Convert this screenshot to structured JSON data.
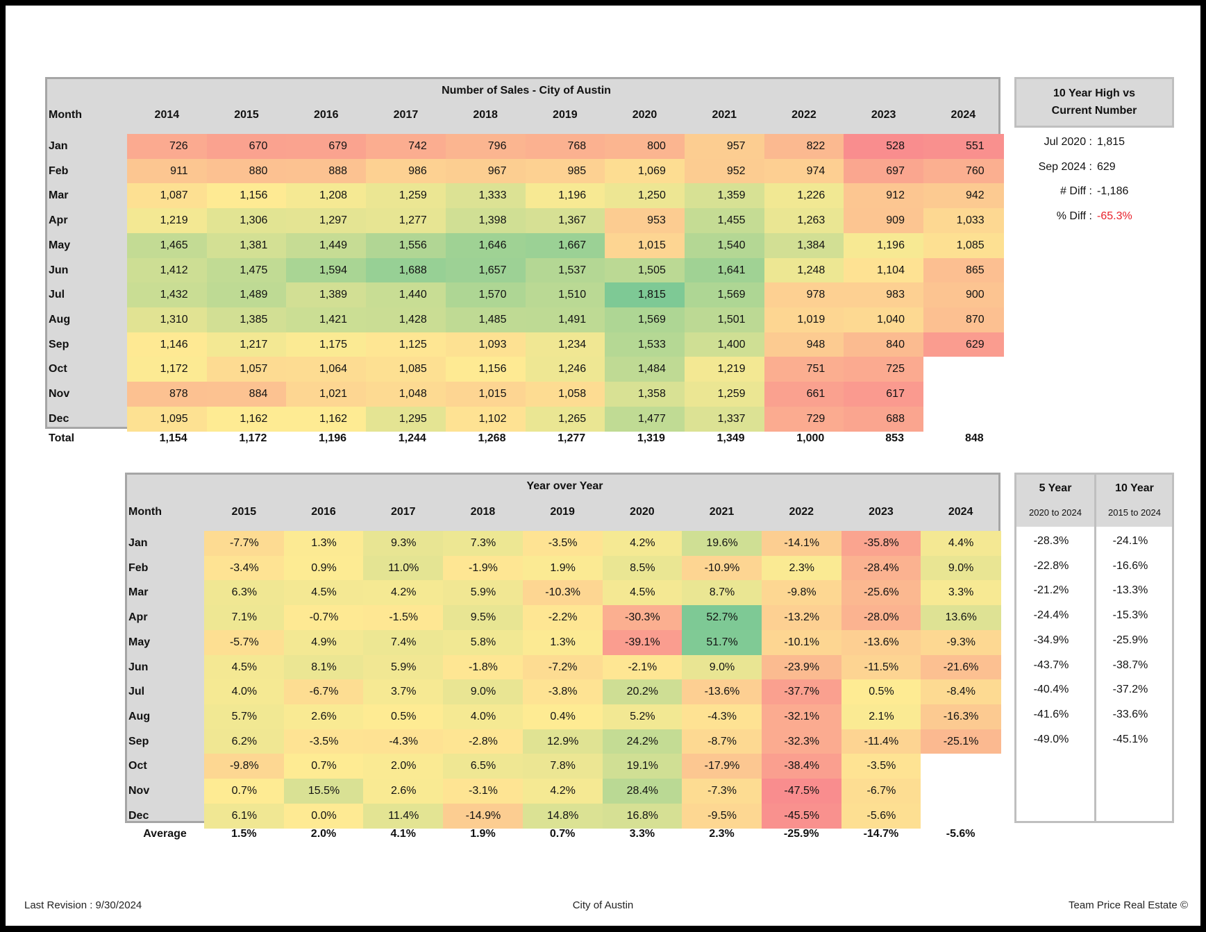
{
  "sales_table": {
    "title": "Number of Sales - City of Austin",
    "month_header": "Month",
    "years": [
      "2014",
      "2015",
      "2016",
      "2017",
      "2018",
      "2019",
      "2020",
      "2021",
      "2022",
      "2023",
      "2024"
    ],
    "months": [
      "Jan",
      "Feb",
      "Mar",
      "Apr",
      "May",
      "Jun",
      "Jul",
      "Aug",
      "Sep",
      "Oct",
      "Nov",
      "Dec"
    ],
    "rows": [
      [
        "726",
        "670",
        "679",
        "742",
        "796",
        "768",
        "800",
        "957",
        "822",
        "528",
        "551"
      ],
      [
        "911",
        "880",
        "888",
        "986",
        "967",
        "985",
        "1,069",
        "952",
        "974",
        "697",
        "760"
      ],
      [
        "1,087",
        "1,156",
        "1,208",
        "1,259",
        "1,333",
        "1,196",
        "1,250",
        "1,359",
        "1,226",
        "912",
        "942"
      ],
      [
        "1,219",
        "1,306",
        "1,297",
        "1,277",
        "1,398",
        "1,367",
        "953",
        "1,455",
        "1,263",
        "909",
        "1,033"
      ],
      [
        "1,465",
        "1,381",
        "1,449",
        "1,556",
        "1,646",
        "1,667",
        "1,015",
        "1,540",
        "1,384",
        "1,196",
        "1,085"
      ],
      [
        "1,412",
        "1,475",
        "1,594",
        "1,688",
        "1,657",
        "1,537",
        "1,505",
        "1,641",
        "1,248",
        "1,104",
        "865"
      ],
      [
        "1,432",
        "1,489",
        "1,389",
        "1,440",
        "1,570",
        "1,510",
        "1,815",
        "1,569",
        "978",
        "983",
        "900"
      ],
      [
        "1,310",
        "1,385",
        "1,421",
        "1,428",
        "1,485",
        "1,491",
        "1,569",
        "1,501",
        "1,019",
        "1,040",
        "870"
      ],
      [
        "1,146",
        "1,217",
        "1,175",
        "1,125",
        "1,093",
        "1,234",
        "1,533",
        "1,400",
        "948",
        "840",
        "629"
      ],
      [
        "1,172",
        "1,057",
        "1,064",
        "1,085",
        "1,156",
        "1,246",
        "1,484",
        "1,219",
        "751",
        "725",
        ""
      ],
      [
        "878",
        "884",
        "1,021",
        "1,048",
        "1,015",
        "1,058",
        "1,358",
        "1,259",
        "661",
        "617",
        ""
      ],
      [
        "1,095",
        "1,162",
        "1,162",
        "1,295",
        "1,102",
        "1,265",
        "1,477",
        "1,337",
        "729",
        "688",
        ""
      ]
    ],
    "total_label": "Total",
    "totals": [
      "1,154",
      "1,172",
      "1,196",
      "1,244",
      "1,268",
      "1,277",
      "1,319",
      "1,349",
      "1,000",
      "853",
      "848"
    ]
  },
  "high_vs_current": {
    "title_line1": "10 Year High vs",
    "title_line2": "Current Number",
    "items": [
      {
        "label": "Jul 2020 :",
        "value": "1,815"
      },
      {
        "label": "Sep 2024 :",
        "value": "629"
      },
      {
        "label": "# Diff :",
        "value": "-1,186"
      },
      {
        "label": "% Diff :",
        "value": "-65.3%"
      }
    ],
    "negative_color": "#e8202a"
  },
  "yoy_table": {
    "title": "Year over Year",
    "month_header": "Month",
    "years": [
      "2015",
      "2016",
      "2017",
      "2018",
      "2019",
      "2020",
      "2021",
      "2022",
      "2023",
      "2024"
    ],
    "months": [
      "Jan",
      "Feb",
      "Mar",
      "Apr",
      "May",
      "Jun",
      "Jul",
      "Aug",
      "Sep",
      "Oct",
      "Nov",
      "Dec"
    ],
    "rows": [
      [
        "-7.7%",
        "1.3%",
        "9.3%",
        "7.3%",
        "-3.5%",
        "4.2%",
        "19.6%",
        "-14.1%",
        "-35.8%",
        "4.4%"
      ],
      [
        "-3.4%",
        "0.9%",
        "11.0%",
        "-1.9%",
        "1.9%",
        "8.5%",
        "-10.9%",
        "2.3%",
        "-28.4%",
        "9.0%"
      ],
      [
        "6.3%",
        "4.5%",
        "4.2%",
        "5.9%",
        "-10.3%",
        "4.5%",
        "8.7%",
        "-9.8%",
        "-25.6%",
        "3.3%"
      ],
      [
        "7.1%",
        "-0.7%",
        "-1.5%",
        "9.5%",
        "-2.2%",
        "-30.3%",
        "52.7%",
        "-13.2%",
        "-28.0%",
        "13.6%"
      ],
      [
        "-5.7%",
        "4.9%",
        "7.4%",
        "5.8%",
        "1.3%",
        "-39.1%",
        "51.7%",
        "-10.1%",
        "-13.6%",
        "-9.3%"
      ],
      [
        "4.5%",
        "8.1%",
        "5.9%",
        "-1.8%",
        "-7.2%",
        "-2.1%",
        "9.0%",
        "-23.9%",
        "-11.5%",
        "-21.6%"
      ],
      [
        "4.0%",
        "-6.7%",
        "3.7%",
        "9.0%",
        "-3.8%",
        "20.2%",
        "-13.6%",
        "-37.7%",
        "0.5%",
        "-8.4%"
      ],
      [
        "5.7%",
        "2.6%",
        "0.5%",
        "4.0%",
        "0.4%",
        "5.2%",
        "-4.3%",
        "-32.1%",
        "2.1%",
        "-16.3%"
      ],
      [
        "6.2%",
        "-3.5%",
        "-4.3%",
        "-2.8%",
        "12.9%",
        "24.2%",
        "-8.7%",
        "-32.3%",
        "-11.4%",
        "-25.1%"
      ],
      [
        "-9.8%",
        "0.7%",
        "2.0%",
        "6.5%",
        "7.8%",
        "19.1%",
        "-17.9%",
        "-38.4%",
        "-3.5%",
        ""
      ],
      [
        "0.7%",
        "15.5%",
        "2.6%",
        "-3.1%",
        "4.2%",
        "28.4%",
        "-7.3%",
        "-47.5%",
        "-6.7%",
        ""
      ],
      [
        "6.1%",
        "0.0%",
        "11.4%",
        "-14.9%",
        "14.8%",
        "16.8%",
        "-9.5%",
        "-45.5%",
        "-5.6%",
        ""
      ]
    ],
    "average_label": "Average",
    "averages": [
      "1.5%",
      "2.0%",
      "4.1%",
      "1.9%",
      "0.7%",
      "3.3%",
      "2.3%",
      "-25.9%",
      "-14.7%",
      "-5.6%"
    ]
  },
  "period_change": {
    "columns": [
      {
        "title": "5 Year",
        "subtitle": "2020 to 2024",
        "values": [
          "-28.3%",
          "-22.8%",
          "-21.2%",
          "-24.4%",
          "-34.9%",
          "-43.7%",
          "-40.4%",
          "-41.6%",
          "-49.0%"
        ]
      },
      {
        "title": "10 Year",
        "subtitle": "2015 to 2024",
        "values": [
          "-24.1%",
          "-16.6%",
          "-13.3%",
          "-15.3%",
          "-25.9%",
          "-38.7%",
          "-37.2%",
          "-33.6%",
          "-45.1%"
        ]
      }
    ]
  },
  "footer": {
    "left": "Last Revision : 9/30/2024",
    "center": "City of Austin",
    "right": "Team Price Real Estate ©"
  },
  "colors": {
    "scale_low": "#f98d8e",
    "scale_mid": "#feeb93",
    "scale_high": "#7ec995",
    "header_bg": "#d9d9d9"
  }
}
